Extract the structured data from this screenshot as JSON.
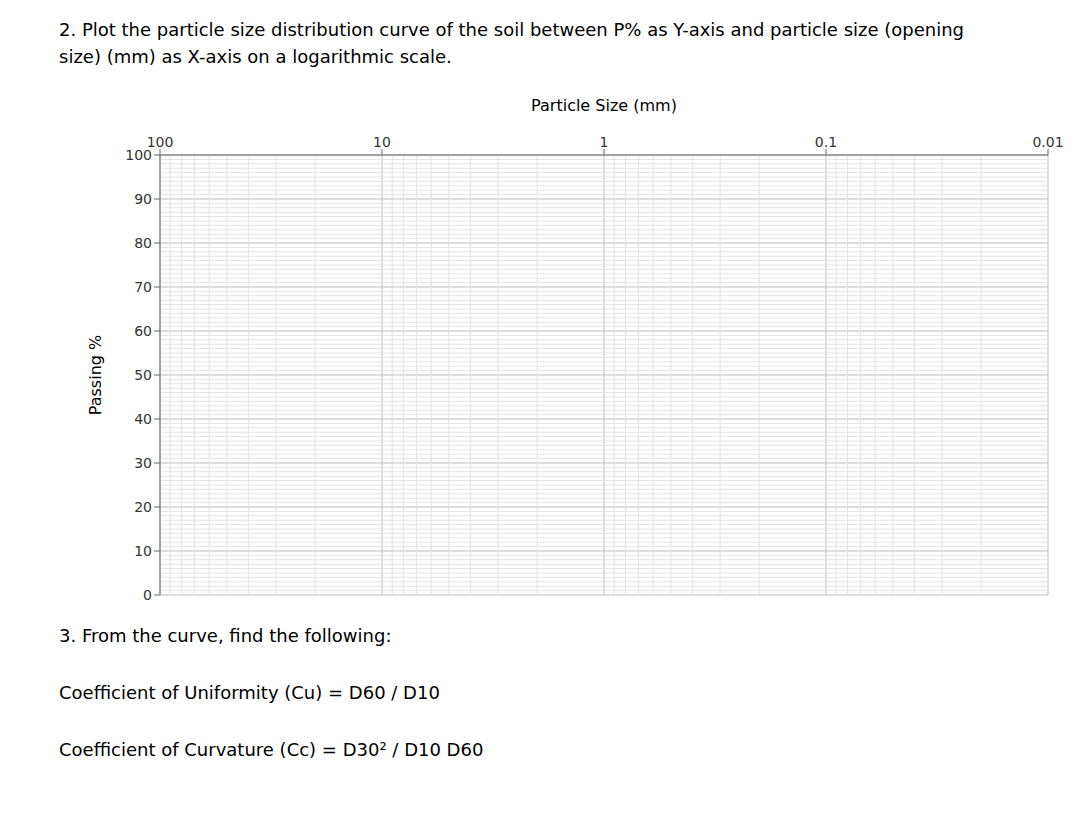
{
  "chart_data": {
    "type": "line",
    "title": "2. Plot the particle size distribution curve of the soil between P% as Y-axis and particle size (opening\nsize) (mm) as X-axis on a logarithmic scale.",
    "xlabel": "Particle Size (mm)",
    "ylabel": "Passing %",
    "xlim": [
      100,
      0.01
    ],
    "ylim": [
      0,
      100
    ],
    "xticks": [
      100,
      10,
      1,
      0.1,
      0.01
    ],
    "yticks": [
      0,
      10,
      20,
      30,
      40,
      50,
      60,
      70,
      80,
      90,
      100
    ],
    "log": "x",
    "grid": true,
    "annotations": [
      "3. From the curve, find the following:",
      "Coefficient of Uniformity (Cu) = D60 / D10",
      "Coefficient of Curvature (Cc) = D30² / D10 D60"
    ]
  }
}
